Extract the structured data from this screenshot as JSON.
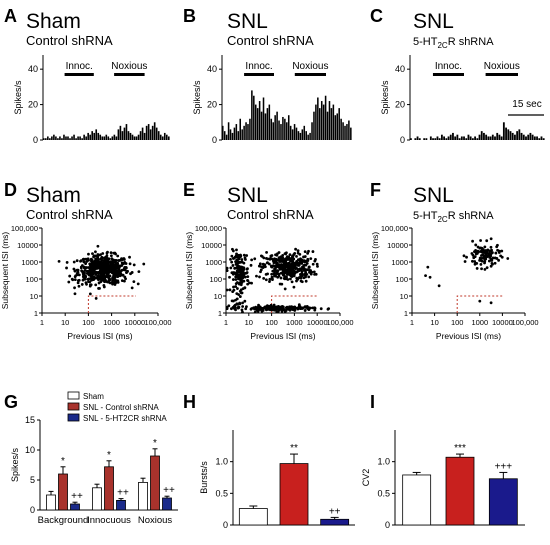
{
  "panels": {
    "A": {
      "letter": "A",
      "title": "Sham",
      "subtitle": "Control shRNA"
    },
    "B": {
      "letter": "B",
      "title": "SNL",
      "subtitle": "Control shRNA"
    },
    "C": {
      "letter": "C",
      "title": "SNL",
      "subtitle_main": "5-HT",
      "subtitle_sub": "2C",
      "subtitle_end": "R shRNA"
    },
    "D": {
      "letter": "D",
      "title": "Sham",
      "subtitle": "Control shRNA"
    },
    "E": {
      "letter": "E",
      "title": "SNL",
      "subtitle": "Control shRNA"
    },
    "F": {
      "letter": "F",
      "title": "SNL",
      "subtitle_main": "5-HT",
      "subtitle_sub": "2C",
      "subtitle_end": "R shRNA"
    },
    "G": {
      "letter": "G"
    },
    "H": {
      "letter": "H"
    },
    "I": {
      "letter": "I"
    }
  },
  "chart_data": [
    {
      "id": "A",
      "type": "bar",
      "ylabel": "Spikes/s",
      "yticks": [
        "0",
        "20",
        "40"
      ],
      "ylim": [
        0,
        48
      ],
      "stim_labels": [
        "Innoc.",
        "Noxious"
      ],
      "values": [
        1,
        1,
        2,
        1,
        2,
        3,
        2,
        1,
        2,
        1,
        3,
        2,
        2,
        1,
        2,
        3,
        1,
        2,
        2,
        1,
        3,
        2,
        4,
        3,
        5,
        4,
        6,
        4,
        3,
        2,
        2,
        3,
        2,
        1,
        2,
        3,
        2,
        6,
        8,
        5,
        7,
        9,
        5,
        4,
        3,
        2,
        2,
        3,
        5,
        7,
        4,
        8,
        9,
        6,
        8,
        10,
        7,
        5,
        3,
        2,
        4,
        3,
        2
      ]
    },
    {
      "id": "B",
      "type": "bar",
      "ylabel": "Spikes/s",
      "yticks": [
        "0",
        "20",
        "40"
      ],
      "ylim": [
        0,
        48
      ],
      "stim_labels": [
        "Innoc.",
        "Noxious"
      ],
      "values": [
        8,
        5,
        3,
        10,
        6,
        4,
        7,
        9,
        5,
        12,
        6,
        8,
        10,
        9,
        12,
        28,
        25,
        20,
        18,
        22,
        16,
        24,
        15,
        18,
        20,
        12,
        10,
        14,
        16,
        11,
        9,
        13,
        12,
        10,
        14,
        8,
        6,
        9,
        7,
        5,
        4,
        6,
        8,
        5,
        3,
        4,
        10,
        16,
        20,
        24,
        18,
        22,
        20,
        25,
        16,
        22,
        18,
        20,
        14,
        15,
        18,
        12,
        10,
        8,
        9,
        11,
        7
      ]
    },
    {
      "id": "C",
      "type": "bar",
      "ylabel": "Spikes/s",
      "yticks": [
        "0",
        "20",
        "40"
      ],
      "ylim": [
        0,
        48
      ],
      "stim_labels": [
        "Innoc.",
        "Noxious"
      ],
      "scale_label": "15 sec",
      "values": [
        1,
        0,
        1,
        2,
        1,
        0,
        1,
        1,
        0,
        2,
        1,
        1,
        2,
        1,
        3,
        2,
        1,
        2,
        3,
        4,
        2,
        3,
        1,
        2,
        2,
        1,
        3,
        2,
        1,
        2,
        1,
        3,
        5,
        4,
        3,
        2,
        2,
        3,
        2,
        4,
        3,
        2,
        10,
        7,
        6,
        5,
        4,
        3,
        5,
        6,
        4,
        3,
        2,
        3,
        4,
        3,
        2,
        2,
        1,
        2,
        1
      ]
    },
    {
      "id": "D",
      "type": "scatter",
      "scale": "log",
      "xlabel": "Previous ISI (ms)",
      "ylabel": "Subsequent ISI (ms)",
      "xticks": [
        "1",
        "10",
        "100",
        "1000",
        "10000",
        "100,000"
      ],
      "yticks": [
        "1",
        "10",
        "100",
        "1000",
        "10000",
        "100,000"
      ],
      "threshold_ms": 100
    },
    {
      "id": "E",
      "type": "scatter",
      "scale": "log",
      "xlabel": "Previous ISI (ms)",
      "ylabel": "Subsequent ISI (ms)",
      "xticks": [
        "1",
        "10",
        "100",
        "1000",
        "10000",
        "100,000"
      ],
      "yticks": [
        "1",
        "10",
        "100",
        "1000",
        "10000",
        "100,000"
      ],
      "threshold_ms": 100
    },
    {
      "id": "F",
      "type": "scatter",
      "scale": "log",
      "xlabel": "Previous ISI (ms)",
      "ylabel": "Subsequent ISI (ms)",
      "xticks": [
        "1",
        "10",
        "100",
        "1000",
        "10000",
        "100,000"
      ],
      "yticks": [
        "1",
        "10",
        "100",
        "1000",
        "10000",
        "100,000"
      ],
      "threshold_ms": 100
    },
    {
      "id": "G",
      "type": "bar",
      "ylabel": "Spikes/s",
      "ylim": [
        0,
        15
      ],
      "yticks": [
        "0",
        "5",
        "10",
        "15"
      ],
      "categories": [
        "Background",
        "Innocuous",
        "Noxious"
      ],
      "legend": [
        "Sham",
        "SNL - Control shRNA",
        "SNL - 5-HT2CR shRNA"
      ],
      "series": [
        {
          "name": "Sham",
          "color": "#ffffff",
          "values": [
            2.5,
            3.7,
            4.6
          ],
          "errors": [
            0.6,
            0.6,
            0.7
          ]
        },
        {
          "name": "SNL - Control shRNA",
          "color": "#a8322c",
          "values": [
            6.0,
            7.2,
            9.0
          ],
          "errors": [
            1.2,
            1.0,
            1.2
          ],
          "sig": [
            "*",
            "*",
            "*"
          ]
        },
        {
          "name": "SNL - 5-HT2CR shRNA",
          "color": "#1a2a8a",
          "values": [
            1.0,
            1.6,
            2.0
          ],
          "errors": [
            0.3,
            0.3,
            0.3
          ],
          "sig": [
            "++",
            "++",
            "++"
          ]
        }
      ]
    },
    {
      "id": "H",
      "type": "bar",
      "ylabel": "Bursts/s",
      "ylim": [
        0,
        1.5
      ],
      "yticks": [
        "0",
        "0.5",
        "1.0"
      ],
      "values": [
        0.26,
        0.97,
        0.09
      ],
      "errors": [
        0.04,
        0.15,
        0.03
      ],
      "colors": [
        "#ffffff",
        "#c8201e",
        "#1a1a8c"
      ],
      "sig": [
        "",
        "**",
        "++"
      ]
    },
    {
      "id": "I",
      "type": "bar",
      "ylabel": "CV2",
      "ylim": [
        0,
        1.5
      ],
      "yticks": [
        "0",
        "0.5",
        "1.0"
      ],
      "values": [
        0.79,
        1.07,
        0.73
      ],
      "errors": [
        0.04,
        0.05,
        0.1
      ],
      "colors": [
        "#ffffff",
        "#c8201e",
        "#1a1a8c"
      ],
      "sig": [
        "",
        "***",
        "+++"
      ]
    }
  ]
}
